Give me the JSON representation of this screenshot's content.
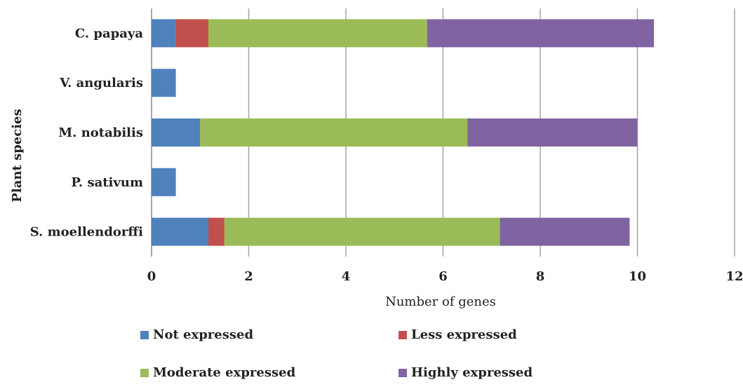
{
  "chart_data": {
    "type": "bar",
    "orientation": "horizontal",
    "stacked": true,
    "title": "",
    "xlabel": "Number of genes",
    "ylabel": "Plant species",
    "xlim": [
      0,
      12
    ],
    "xticks": [
      0,
      2,
      4,
      6,
      8,
      10,
      12
    ],
    "grid": true,
    "legend_position": "bottom",
    "categories": [
      "C. papaya",
      "V. angularis",
      "M. notabilis",
      "P. sativum",
      "S. moellendorffi"
    ],
    "series": [
      {
        "name": "Not expressed",
        "color": "#4f81bd",
        "values": [
          0.5,
          0.5,
          1.0,
          0.5,
          1.17
        ]
      },
      {
        "name": "Less expressed",
        "color": "#c0504d",
        "values": [
          0.67,
          0,
          0,
          0,
          0.33
        ]
      },
      {
        "name": "Moderate expressed",
        "color": "#9bbb59",
        "values": [
          4.5,
          0,
          5.5,
          0,
          5.67
        ]
      },
      {
        "name": "Highly expressed",
        "color": "#8064a2",
        "values": [
          4.67,
          0,
          3.5,
          0,
          2.67
        ]
      }
    ]
  }
}
